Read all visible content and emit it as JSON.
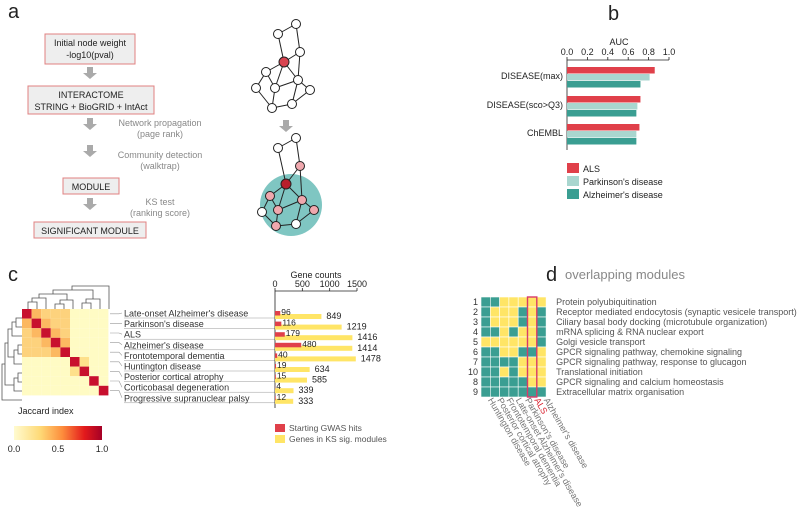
{
  "panel_letters": [
    "a",
    "b",
    "c",
    "d"
  ],
  "panel_a": {
    "boxes": [
      "Initial node weight",
      "-log10(pval)",
      "INTERACTOME",
      "STRING + BioGRID + IntAct",
      "MODULE",
      "SIGNIFICANT MODULE"
    ],
    "steps": [
      "Network propagation",
      "(page rank)",
      "Community detection",
      "(walktrap)",
      "KS test",
      "(ranking score)"
    ]
  },
  "panel_c": {
    "gene_counts_title": "Gene counts",
    "legend_title": "Jaccard index",
    "legend_ticks": [
      "0.0",
      "0.5",
      "1.0"
    ],
    "bar_legend": [
      "Starting GWAS hits",
      "Genes in KS sig. modules"
    ]
  },
  "panel_d": {
    "title": "overlapping modules",
    "highlight": "ALS"
  },
  "chart_data": [
    {
      "type": "bar",
      "title": "AUC",
      "orientation": "horizontal",
      "categories": [
        "DISEASE(max)",
        "DISEASE(sco>Q3)",
        "ChEMBL"
      ],
      "xlim": [
        0,
        1
      ],
      "xticks": [
        "0.0",
        "0.2",
        "0.4",
        "0.6",
        "0.8",
        "1.0"
      ],
      "colors": {
        "ALS": "#e0404a",
        "Parkinson's disease": "#a9d6cf",
        "Alzheimer's disease": "#3a9e92"
      },
      "series": [
        {
          "name": "ALS",
          "values": [
            0.86,
            0.72,
            0.71
          ]
        },
        {
          "name": "Parkinson's disease",
          "values": [
            0.81,
            0.69,
            0.68
          ]
        },
        {
          "name": "Alzheimer's disease",
          "values": [
            0.72,
            0.68,
            0.68
          ]
        }
      ],
      "legend_position": "bottom-left"
    },
    {
      "type": "bar",
      "orientation": "horizontal",
      "categories": [
        "Late-onset Alzheimer's disease",
        "Parkinson's disease",
        "ALS",
        "Alzheimer's disease",
        "Frontotemporal dementia",
        "Huntington disease",
        "Posterior cortical atrophy",
        "Corticobasal degeneration",
        "Progressive supranuclear palsy"
      ],
      "xlim": [
        0,
        1500
      ],
      "xticks": [
        "0",
        "500",
        "1000",
        "1500"
      ],
      "series": [
        {
          "name": "Starting GWAS hits",
          "color": "#e0404a",
          "values": [
            96,
            116,
            179,
            480,
            40,
            19,
            15,
            4,
            12
          ],
          "labels": [
            "96",
            "116",
            "179",
            "480",
            "40",
            "19",
            "15",
            "4",
            "12"
          ]
        },
        {
          "name": "Genes in KS sig. modules",
          "color": "#ffe566",
          "values": [
            849,
            1219,
            1416,
            1414,
            1478,
            634,
            585,
            339,
            333
          ],
          "labels": [
            "849",
            "1219",
            "1416",
            "1414",
            "1478",
            "634",
            "585",
            "339",
            "333"
          ]
        }
      ]
    },
    {
      "type": "heatmap",
      "rows": [
        "1",
        "2",
        "3",
        "4",
        "5",
        "6",
        "7",
        "10",
        "8",
        "9"
      ],
      "row_labels": [
        "Protein polyubiquitination",
        "Receptor mediated endocytosis (synaptic vesicele transport)",
        "Ciliary basal body docking (microtubule organization)",
        "mRNA splicing & RNA nuclear export",
        "Golgi vesicle transport",
        "GPCR signaling pathway, chemokine signaling",
        "GPCR signaling pathway, response to glucagon",
        "Translational initiation",
        "GPCR signaling and calcium homeostasis",
        "Extracellular matrix organisation"
      ],
      "columns": [
        "Huntington disease",
        "Posterior cortical atrophy",
        "Frontotemporal dementia",
        "Late-onset Alzheimer's disease",
        "Parkinson's disease",
        "ALS",
        "Alzheimer's disease"
      ],
      "colors": {
        "1": "#ffe566",
        "0": "#3a9e92"
      },
      "matrix": [
        [
          0,
          0,
          1,
          1,
          1,
          1,
          1
        ],
        [
          0,
          1,
          1,
          1,
          0,
          1,
          0
        ],
        [
          0,
          1,
          1,
          1,
          0,
          1,
          0
        ],
        [
          0,
          0,
          1,
          0,
          1,
          1,
          0
        ],
        [
          1,
          1,
          1,
          1,
          1,
          1,
          0
        ],
        [
          0,
          0,
          1,
          1,
          0,
          0,
          1
        ],
        [
          0,
          0,
          0,
          0,
          1,
          1,
          1
        ],
        [
          0,
          0,
          1,
          0,
          1,
          1,
          1
        ],
        [
          0,
          0,
          0,
          0,
          0,
          1,
          1
        ],
        [
          0,
          0,
          0,
          0,
          0,
          0,
          0
        ]
      ]
    }
  ]
}
